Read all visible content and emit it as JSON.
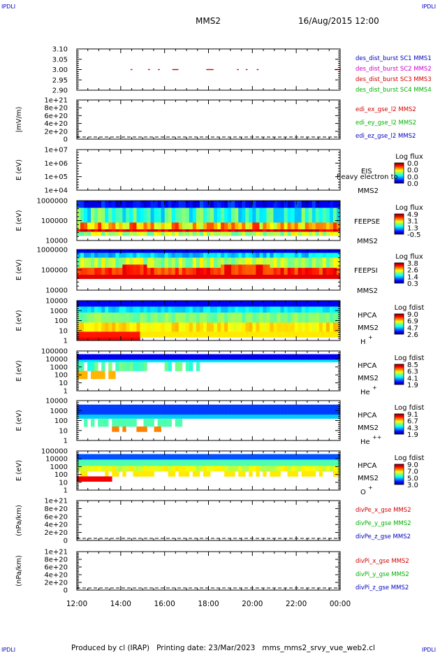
{
  "header": {
    "corner_tl": "IPDLI",
    "corner_tr": "IPDLI",
    "corner_bl": "IPDLI",
    "corner_br": "IPDLI",
    "title": "MMS2",
    "datetime": "16/Aug/2015 12:00"
  },
  "footer": {
    "text": "Produced by cl (IRAP)   Printing date: 23/Mar/2023   mms_mms2_srvy_vue_web2.cl"
  },
  "time_axis": {
    "labels": [
      "12:00",
      "14:00",
      "16:00",
      "18:00",
      "20:00",
      "22:00",
      "00:00"
    ]
  },
  "chart_data": [
    {
      "type": "scatter",
      "id": "des_dist",
      "ylabel": "",
      "ylim": [
        2.9,
        3.1
      ],
      "yticks": [
        "3.10",
        "3.05",
        "3.00",
        "2.95",
        "2.90"
      ],
      "legend": [
        {
          "name": "des_dist_burst",
          "suffix": "SC1 MMS1",
          "color": "#0000c0"
        },
        {
          "name": "des_dist_burst",
          "suffix": "SC2 MMS2",
          "color": "#cc00cc"
        },
        {
          "name": "des_dist_burst",
          "suffix": "SC3 MMS3",
          "color": "#d00000"
        },
        {
          "name": "des_dist_burst",
          "suffix": "SC4 MMS4",
          "color": "#00b000"
        }
      ],
      "segments_hours": [
        [
          14.45,
          14.5
        ],
        [
          15.25,
          15.3
        ],
        [
          15.7,
          15.75
        ],
        [
          16.35,
          16.6
        ],
        [
          17.9,
          18.2
        ],
        [
          19.3,
          19.35
        ],
        [
          19.7,
          19.75
        ],
        [
          20.2,
          20.25
        ],
        [
          23.75,
          24.0
        ]
      ],
      "value": 3.0
    },
    {
      "type": "line",
      "id": "edi",
      "ylabel": "|mV/m)",
      "yticks": [
        "1e+21",
        "8e+20",
        "6e+20",
        "4e+20",
        "2e+20",
        "0"
      ],
      "legend": [
        {
          "name": "edi_ex_gse_l2 MMS2",
          "color": "#d00000"
        },
        {
          "name": "edi_ey_gse_l2 MMS2",
          "color": "#00b000"
        },
        {
          "name": "edi_ez_gse_l2 MMS2",
          "color": "#0000c0"
        }
      ]
    },
    {
      "type": "heatmap",
      "id": "eis",
      "ylabel": "E (eV)",
      "yticks": [
        "1e+07",
        "1e+06",
        "1e+05",
        "1e+04"
      ],
      "instrument": [
        "EIS",
        "heavy electron to",
        "MMS2"
      ],
      "colorbar": {
        "title": "Log flux",
        "ticks": [
          "0.0",
          "0.0",
          "0.0",
          "0.0"
        ]
      }
    },
    {
      "type": "heatmap",
      "id": "feepse",
      "ylabel": "E (eV)",
      "yticks": [
        "1000000",
        "100000",
        "10000"
      ],
      "instrument": [
        "FEEPSE",
        "MMS2"
      ],
      "colorbar": {
        "title": "Log flux",
        "ticks": [
          "4.9",
          "3.1",
          "1.3",
          "-0.5"
        ]
      }
    },
    {
      "type": "heatmap",
      "id": "feepsi",
      "ylabel": "E (eV)",
      "yticks": [
        "1000000",
        "100000",
        "10000"
      ],
      "instrument": [
        "FEEPSI",
        "MMS2"
      ],
      "colorbar": {
        "title": "Log flux",
        "ticks": [
          "3.8",
          "2.6",
          "1.4",
          "0.3"
        ]
      }
    },
    {
      "type": "heatmap",
      "id": "hpca_h",
      "ylabel": "E (eV)",
      "yticks": [
        "10000",
        "1000",
        "100",
        "10",
        "1"
      ],
      "instrument": [
        "HPCA",
        "MMS2",
        "H",
        "+"
      ],
      "colorbar": {
        "title": "Log fdist",
        "ticks": [
          "9.0",
          "6.9",
          "4.7",
          "2.6"
        ]
      }
    },
    {
      "type": "heatmap",
      "id": "hpca_he",
      "ylabel": "E (eV)",
      "yticks": [
        "100000",
        "10000",
        "1000",
        "100",
        "10",
        "1"
      ],
      "instrument": [
        "HPCA",
        "MMS2",
        "He",
        "+"
      ],
      "colorbar": {
        "title": "Log fdist",
        "ticks": [
          "8.5",
          "6.3",
          "4.1",
          "1.9"
        ]
      }
    },
    {
      "type": "heatmap",
      "id": "hpca_hepp",
      "ylabel": "E (eV)",
      "yticks": [
        "10000",
        "1000",
        "100",
        "10",
        "1"
      ],
      "instrument": [
        "HPCA",
        "MMS2",
        "He",
        "++"
      ],
      "colorbar": {
        "title": "Log fdist",
        "ticks": [
          "9.1",
          "6.7",
          "4.3",
          "1.9"
        ]
      }
    },
    {
      "type": "heatmap",
      "id": "hpca_o",
      "ylabel": "E (eV)",
      "yticks": [
        "100000",
        "10000",
        "1000",
        "100",
        "10",
        "1"
      ],
      "instrument": [
        "HPCA",
        "MMS2",
        "O",
        "+"
      ],
      "colorbar": {
        "title": "Log fdist",
        "ticks": [
          "9.0",
          "7.0",
          "5.0",
          "3.0"
        ]
      }
    },
    {
      "type": "line",
      "id": "divpe",
      "ylabel": "(nPa/km)",
      "yticks": [
        "1e+21",
        "8e+20",
        "6e+20",
        "4e+20",
        "2e+20",
        "0"
      ],
      "legend": [
        {
          "name": "divPe_x_gse MMS2",
          "color": "#d00000"
        },
        {
          "name": "divPe_y_gse MMS2",
          "color": "#00b000"
        },
        {
          "name": "divPe_z_gse MMS2",
          "color": "#0000c0"
        }
      ]
    },
    {
      "type": "line",
      "id": "divpi",
      "ylabel": "(nPa/km)",
      "yticks": [
        "1e+21",
        "8e+20",
        "6e+20",
        "4e+20",
        "2e+20",
        "0"
      ],
      "legend": [
        {
          "name": "divPi_x_gse MMS2",
          "color": "#d00000"
        },
        {
          "name": "divPi_y_gse MMS2",
          "color": "#00b000"
        },
        {
          "name": "divPi_z_gse MMS2",
          "color": "#0000c0"
        }
      ]
    }
  ]
}
